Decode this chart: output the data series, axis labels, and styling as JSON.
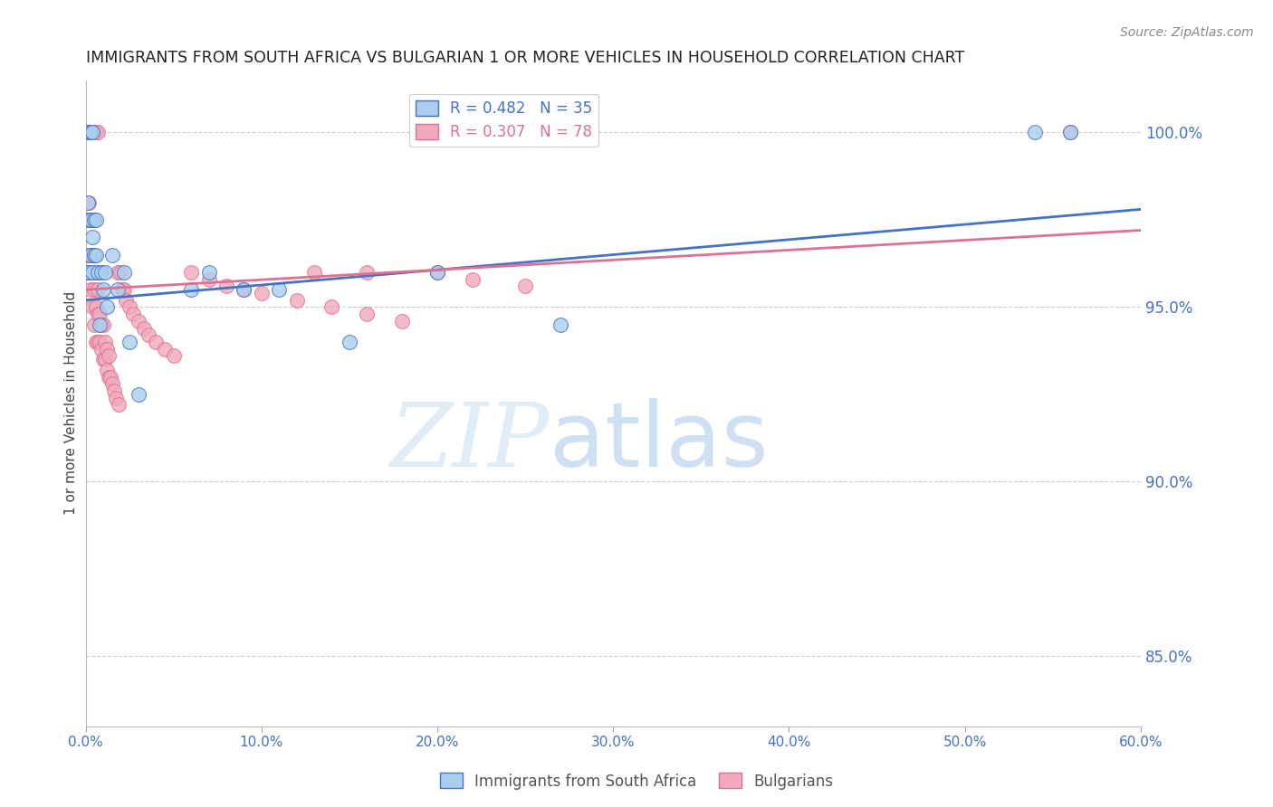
{
  "title": "IMMIGRANTS FROM SOUTH AFRICA VS BULGARIAN 1 OR MORE VEHICLES IN HOUSEHOLD CORRELATION CHART",
  "source": "Source: ZipAtlas.com",
  "ylabel": "1 or more Vehicles in Household",
  "xlim": [
    0.0,
    0.6
  ],
  "ylim": [
    0.83,
    1.015
  ],
  "yticks": [
    0.85,
    0.9,
    0.95,
    1.0
  ],
  "ytick_labels": [
    "85.0%",
    "90.0%",
    "95.0%",
    "100.0%"
  ],
  "xticks": [
    0.0,
    0.1,
    0.2,
    0.3,
    0.4,
    0.5,
    0.6
  ],
  "xtick_labels": [
    "0.0%",
    "10.0%",
    "20.0%",
    "30.0%",
    "40.0%",
    "50.0%",
    "60.0%"
  ],
  "blue_color": "#aacfee",
  "pink_color": "#f0aabb",
  "blue_line_color": "#4472c4",
  "pink_line_color": "#e07090",
  "R_blue": 0.482,
  "N_blue": 35,
  "R_pink": 0.307,
  "N_pink": 78,
  "watermark_zip": "ZIP",
  "watermark_atlas": "atlas",
  "series1_label": "Immigrants from South Africa",
  "series2_label": "Bulgarians",
  "blue_x": [
    0.001,
    0.001,
    0.002,
    0.002,
    0.002,
    0.003,
    0.003,
    0.003,
    0.004,
    0.004,
    0.004,
    0.005,
    0.005,
    0.006,
    0.006,
    0.007,
    0.008,
    0.009,
    0.01,
    0.011,
    0.012,
    0.015,
    0.018,
    0.022,
    0.025,
    0.03,
    0.06,
    0.07,
    0.09,
    0.11,
    0.15,
    0.2,
    0.27,
    0.54,
    0.56
  ],
  "blue_y": [
    0.96,
    0.98,
    0.96,
    0.975,
    1.0,
    0.965,
    0.975,
    1.0,
    0.96,
    0.97,
    1.0,
    0.965,
    0.975,
    0.965,
    0.975,
    0.96,
    0.945,
    0.96,
    0.955,
    0.96,
    0.95,
    0.965,
    0.955,
    0.96,
    0.94,
    0.925,
    0.955,
    0.96,
    0.955,
    0.955,
    0.94,
    0.96,
    0.945,
    1.0,
    1.0
  ],
  "pink_x": [
    0.001,
    0.001,
    0.001,
    0.001,
    0.002,
    0.002,
    0.002,
    0.002,
    0.002,
    0.003,
    0.003,
    0.003,
    0.003,
    0.003,
    0.004,
    0.004,
    0.004,
    0.004,
    0.004,
    0.005,
    0.005,
    0.005,
    0.005,
    0.005,
    0.006,
    0.006,
    0.006,
    0.006,
    0.007,
    0.007,
    0.007,
    0.007,
    0.008,
    0.008,
    0.008,
    0.009,
    0.009,
    0.01,
    0.01,
    0.011,
    0.011,
    0.012,
    0.012,
    0.013,
    0.013,
    0.014,
    0.015,
    0.016,
    0.017,
    0.018,
    0.019,
    0.02,
    0.021,
    0.022,
    0.023,
    0.025,
    0.027,
    0.03,
    0.033,
    0.036,
    0.04,
    0.045,
    0.05,
    0.06,
    0.07,
    0.08,
    0.09,
    0.1,
    0.12,
    0.14,
    0.16,
    0.18,
    0.2,
    0.22,
    0.25,
    0.13,
    0.16,
    0.56
  ],
  "pink_y": [
    0.96,
    0.965,
    0.975,
    1.0,
    0.96,
    0.965,
    0.975,
    0.98,
    1.0,
    0.955,
    0.96,
    0.965,
    0.975,
    1.0,
    0.95,
    0.96,
    0.965,
    0.975,
    1.0,
    0.945,
    0.955,
    0.96,
    0.965,
    1.0,
    0.94,
    0.95,
    0.96,
    1.0,
    0.94,
    0.948,
    0.955,
    1.0,
    0.94,
    0.948,
    0.96,
    0.938,
    0.945,
    0.935,
    0.945,
    0.935,
    0.94,
    0.932,
    0.938,
    0.93,
    0.936,
    0.93,
    0.928,
    0.926,
    0.924,
    0.96,
    0.922,
    0.96,
    0.955,
    0.955,
    0.952,
    0.95,
    0.948,
    0.946,
    0.944,
    0.942,
    0.94,
    0.938,
    0.936,
    0.96,
    0.958,
    0.956,
    0.955,
    0.954,
    0.952,
    0.95,
    0.948,
    0.946,
    0.96,
    0.958,
    0.956,
    0.96,
    0.96,
    1.0
  ],
  "blue_trend_x0": 0.0,
  "blue_trend_x1": 0.6,
  "blue_trend_y0": 0.952,
  "blue_trend_y1": 0.978,
  "pink_trend_x0": 0.0,
  "pink_trend_x1": 0.6,
  "pink_trend_y0": 0.955,
  "pink_trend_y1": 0.972
}
